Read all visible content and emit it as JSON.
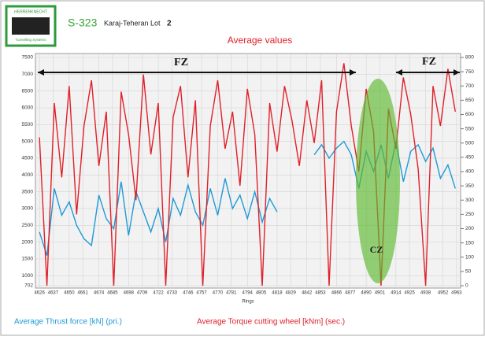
{
  "header": {
    "logo": "HERRENKNECHT",
    "logo_sub": "Tunnelling Systems",
    "code": "S-323",
    "project": "Karaj-Teheran Lot",
    "lot": "2"
  },
  "chart_data": {
    "type": "line",
    "title": "Average values",
    "x_label": "Rings",
    "x": [
      4626,
      4632,
      4638,
      4644,
      4650,
      4656,
      4662,
      4668,
      4674,
      4680,
      4686,
      4692,
      4698,
      4704,
      4710,
      4716,
      4722,
      4728,
      4734,
      4740,
      4746,
      4752,
      4758,
      4764,
      4770,
      4776,
      4782,
      4788,
      4794,
      4800,
      4806,
      4812,
      4818,
      4824,
      4830,
      4836,
      4842,
      4848,
      4854,
      4860,
      4866,
      4872,
      4878,
      4884,
      4890,
      4896,
      4902,
      4908,
      4914,
      4920,
      4926,
      4932,
      4938,
      4944,
      4950,
      4956,
      4962
    ],
    "xlim": [
      4624,
      4965
    ],
    "xticks": [
      4626,
      4637,
      4650,
      4661,
      4674,
      4685,
      4698,
      4709,
      4722,
      4733,
      4746,
      4757,
      4770,
      4781,
      4794,
      4805,
      4818,
      4829,
      4842,
      4853,
      4866,
      4877,
      4890,
      4901,
      4914,
      4925,
      4938,
      4952,
      4963
    ],
    "ylim": [
      702,
      7500
    ],
    "yticks": [
      702,
      1000,
      1500,
      2000,
      2500,
      3000,
      3500,
      4000,
      4500,
      5000,
      5500,
      6000,
      6500,
      7000,
      7500
    ],
    "y2lim": [
      0,
      800
    ],
    "y2ticks": [
      0,
      50,
      100,
      150,
      200,
      250,
      300,
      350,
      400,
      450,
      500,
      550,
      600,
      650,
      700,
      750,
      800
    ],
    "grid": true,
    "series": [
      {
        "name": "Average Thrust force [kN] (pri.)",
        "color": "#1f9ad6",
        "values": [
          2300,
          1600,
          3600,
          2800,
          3200,
          2500,
          2100,
          1900,
          3400,
          2700,
          2400,
          3800,
          2200,
          3500,
          2900,
          2300,
          3000,
          2000,
          3300,
          2800,
          3700,
          2900,
          2500,
          3600,
          2800,
          3900,
          3000,
          3400,
          2700,
          3500,
          2600,
          3300,
          2900,
          null,
          null,
          null,
          null,
          4600,
          4900,
          4500,
          4800,
          5000,
          4600,
          3600,
          4700,
          4100,
          4900,
          3900,
          5000,
          3800,
          4700,
          4900,
          4400,
          4800,
          3900,
          4300,
          3600
        ]
      },
      {
        "name": "Average Torque cutting wheel [kNm] (sec.)",
        "color": "#e0202a",
        "axis": "y2",
        "values": [
          520,
          0,
          640,
          380,
          700,
          250,
          560,
          720,
          420,
          610,
          0,
          680,
          530,
          300,
          740,
          460,
          640,
          0,
          590,
          700,
          380,
          650,
          0,
          560,
          720,
          480,
          610,
          350,
          690,
          530,
          0,
          640,
          470,
          700,
          580,
          420,
          650,
          500,
          720,
          0,
          610,
          780,
          560,
          400,
          690,
          540,
          0,
          620,
          480,
          730,
          600,
          410,
          0,
          700,
          560,
          760,
          610
        ]
      }
    ],
    "annotations": [
      "FZ",
      "FZ",
      "CZ"
    ]
  }
}
